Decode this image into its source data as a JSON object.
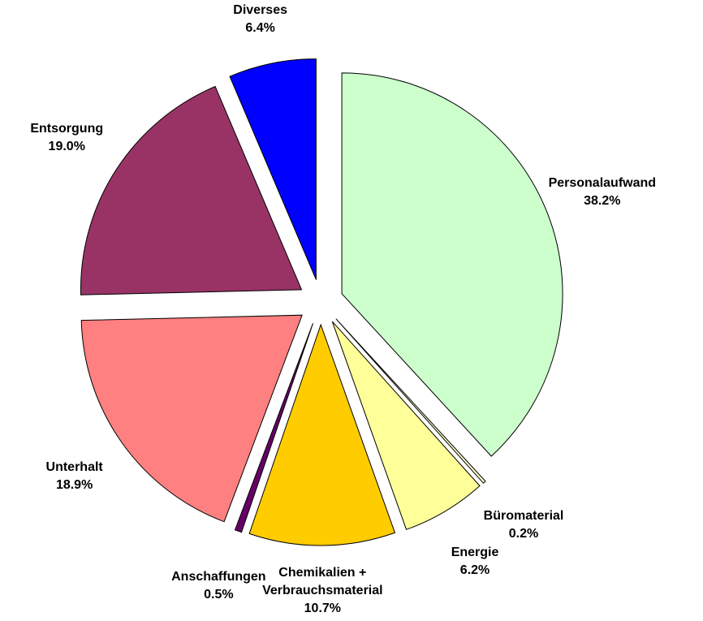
{
  "chart_data": {
    "type": "pie",
    "categories": [
      "Personalaufwand",
      "Büromaterial",
      "Energie",
      "Chemikalien + Verbrauchsmaterial",
      "Anschaffungen",
      "Unterhalt",
      "Entsorgung",
      "Diverses"
    ],
    "values": [
      38.2,
      0.2,
      6.2,
      10.7,
      0.5,
      18.9,
      19.0,
      6.4
    ],
    "value_labels": [
      "38.2%",
      "0.2%",
      "6.2%",
      "10.7%",
      "0.5%",
      "18.9%",
      "19.0%",
      "6.4%"
    ],
    "colors": [
      "#ccffcc",
      "#ffffcc",
      "#ffff99",
      "#ffcc00",
      "#660066",
      "#ff8080",
      "#993366",
      "#0000ff"
    ]
  }
}
